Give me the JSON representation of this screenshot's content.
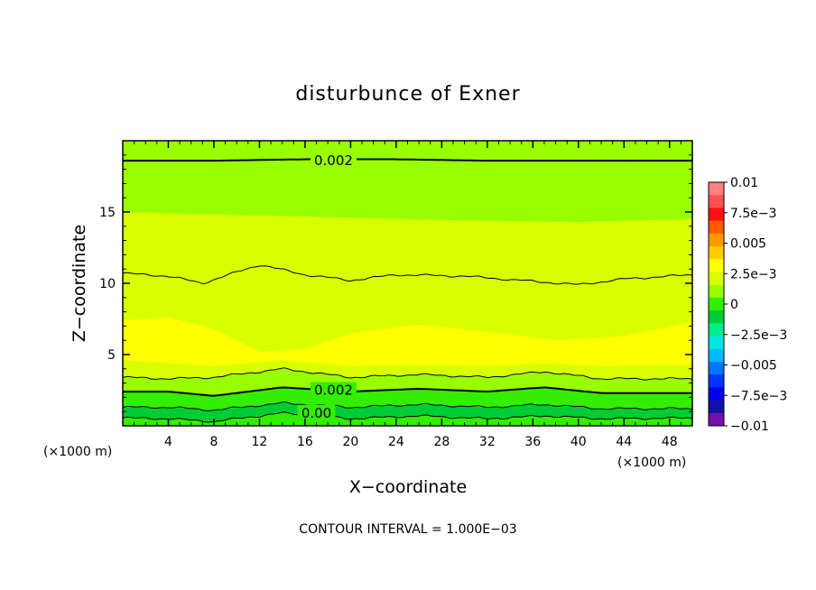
{
  "chart_data": {
    "type": "contour",
    "title": "disturbunce of Exner",
    "xlabel": "X−coordinate",
    "ylabel": "Z−coordinate",
    "x_unit": "(×1000 m)",
    "y_unit": "(×1000 m)",
    "xlim": [
      0,
      50
    ],
    "ylim": [
      0,
      20
    ],
    "x_ticks": [
      4,
      8,
      12,
      16,
      20,
      24,
      28,
      32,
      36,
      40,
      44,
      48
    ],
    "y_ticks": [
      5,
      10,
      15
    ],
    "contour_interval_text": "CONTOUR INTERVAL = 1.000E−03",
    "colorbar": {
      "labels": [
        "0.01",
        "7.5e−3",
        "0.005",
        "2.5e−3",
        "0",
        "−2.5e−3",
        "−0.005",
        "−7.5e−3",
        "−0.01"
      ],
      "levels": [
        0.01,
        0.0075,
        0.005,
        0.0025,
        0,
        -0.0025,
        -0.005,
        -0.0075,
        -0.01
      ],
      "colors": [
        "#ff8080",
        "#ff5050",
        "#ff1010",
        "#ff5a00",
        "#ff9900",
        "#ffcc00",
        "#ffff00",
        "#d8ff00",
        "#99ff00",
        "#33ee00",
        "#00cc33",
        "#00ee88",
        "#00e8dd",
        "#00bbff",
        "#0077ff",
        "#0033ff",
        "#0000ee",
        "#1010aa",
        "#7711aa"
      ]
    },
    "fill_bands": [
      {
        "name": "light-green band",
        "color": "#99ff00"
      },
      {
        "name": "yellow-green band",
        "color": "#d8ff00"
      },
      {
        "name": "yellow band",
        "color": "#ffff00"
      },
      {
        "name": "green band",
        "color": "#33ee00"
      },
      {
        "name": "bright green band",
        "color": "#00cc33"
      }
    ],
    "contour_lines": [
      {
        "level": 0.002,
        "z": [
          18.6,
          18.6,
          18.7,
          18.7,
          18.6,
          18.6,
          18.6,
          18.6
        ],
        "x": [
          0,
          8,
          16,
          24,
          32,
          40,
          46,
          50
        ],
        "weight": "thick"
      },
      {
        "level": 0.003,
        "z": [
          10.7,
          10.5,
          10.0,
          11.3,
          10.6,
          10.2,
          10.6,
          10.5,
          9.9,
          10.3,
          10.6
        ],
        "x": [
          0,
          4,
          7,
          12,
          16,
          20,
          24,
          30,
          40,
          44,
          50
        ],
        "weight": "thin"
      },
      {
        "level": 0.003,
        "z": [
          3.4,
          3.3,
          3.4,
          4.0,
          3.4,
          3.6,
          3.4,
          3.8,
          3.3,
          3.3
        ],
        "x": [
          0,
          4,
          8,
          14,
          20,
          26,
          32,
          37,
          42,
          50
        ],
        "weight": "thin"
      },
      {
        "level": 0.002,
        "z": [
          2.4,
          2.4,
          2.1,
          2.7,
          2.4,
          2.6,
          2.4,
          2.7,
          2.3,
          2.3
        ],
        "x": [
          0,
          4,
          8,
          14,
          20,
          26,
          32,
          37,
          42,
          50
        ],
        "weight": "thick"
      },
      {
        "level": 0.001,
        "z": [
          1.3,
          1.3,
          1.1,
          1.6,
          1.3,
          1.5,
          1.3,
          1.5,
          1.2,
          1.2
        ],
        "x": [
          0,
          4,
          8,
          14,
          20,
          26,
          32,
          37,
          42,
          50
        ],
        "weight": "thin"
      },
      {
        "level": 0.0,
        "z": [
          0.55,
          0.5,
          0.3,
          0.9,
          0.5,
          0.7,
          0.5,
          0.7,
          0.5,
          0.55
        ],
        "x": [
          0,
          4,
          8,
          14,
          20,
          26,
          32,
          37,
          42,
          50
        ],
        "weight": "thin"
      }
    ],
    "contour_labels": [
      {
        "text": "0.002",
        "x": 18.5,
        "z": 18.6
      },
      {
        "text": "0.002",
        "x": 18.5,
        "z": 2.5
      },
      {
        "text": "0.00",
        "x": 17.0,
        "z": 0.9
      }
    ],
    "grid": false,
    "legend": "colorbar-right"
  }
}
